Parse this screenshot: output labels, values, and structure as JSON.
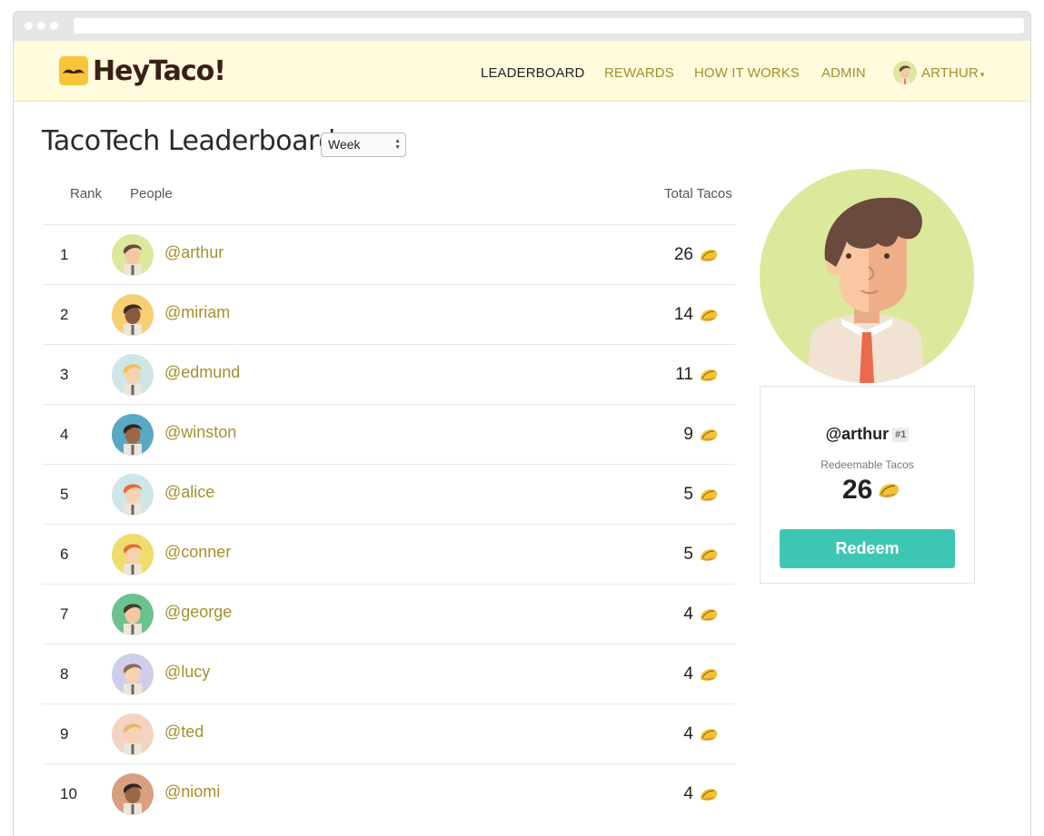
{
  "app": {
    "name": "HeyTaco!"
  },
  "nav": {
    "items": [
      {
        "label": "LEADERBOARD",
        "active": true
      },
      {
        "label": "REWARDS",
        "active": false
      },
      {
        "label": "HOW IT WORKS",
        "active": false
      },
      {
        "label": "ADMIN",
        "active": false
      }
    ],
    "user_label": "ARTHUR"
  },
  "page": {
    "title": "TacoTech Leaderboard",
    "period": {
      "selected": "Week"
    }
  },
  "table": {
    "headers": {
      "rank": "Rank",
      "people": "People",
      "tacos": "Total Tacos"
    },
    "rows": [
      {
        "rank": "1",
        "handle": "@arthur",
        "tacos": "26"
      },
      {
        "rank": "2",
        "handle": "@miriam",
        "tacos": "14"
      },
      {
        "rank": "3",
        "handle": "@edmund",
        "tacos": "11"
      },
      {
        "rank": "4",
        "handle": "@winston",
        "tacos": "9"
      },
      {
        "rank": "5",
        "handle": "@alice",
        "tacos": "5"
      },
      {
        "rank": "6",
        "handle": "@conner",
        "tacos": "5"
      },
      {
        "rank": "7",
        "handle": "@george",
        "tacos": "4"
      },
      {
        "rank": "8",
        "handle": "@lucy",
        "tacos": "4"
      },
      {
        "rank": "9",
        "handle": "@ted",
        "tacos": "4"
      },
      {
        "rank": "10",
        "handle": "@niomi",
        "tacos": "4"
      }
    ]
  },
  "profile": {
    "handle": "@arthur",
    "rank_badge": "#1",
    "redeemable_label": "Redeemable Tacos",
    "redeemable_count": "26",
    "redeem_label": "Redeem"
  },
  "colors": {
    "accent": "#a3902d",
    "navbar_bg": "#fffbdc",
    "redeem_button": "#3ec6b5"
  },
  "icons": [
    "mustache-logo-icon",
    "taco-icon",
    "user-avatar-icon"
  ]
}
